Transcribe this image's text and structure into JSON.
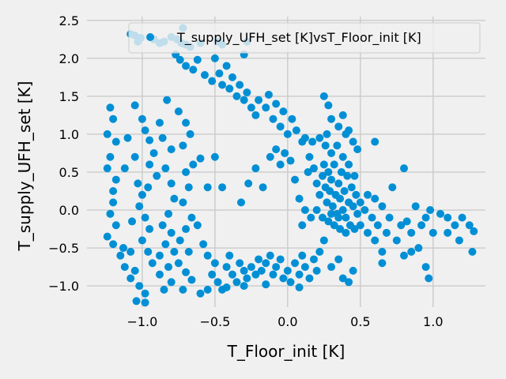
{
  "chart_data": {
    "type": "scatter",
    "xlabel": "T_Floor_init [K]",
    "ylabel": "T_supply_UFH_set [K]",
    "xlim": [
      -1.38,
      1.36
    ],
    "ylim": [
      -1.28,
      2.55
    ],
    "x_ticks": [
      -1.0,
      -0.5,
      0.0,
      0.5,
      1.0
    ],
    "x_tick_labels": [
      "−1.0",
      "−0.5",
      "0.0",
      "0.5",
      "1.0"
    ],
    "y_ticks": [
      -1.0,
      -0.5,
      0.0,
      0.5,
      1.0,
      1.5,
      2.0,
      2.5
    ],
    "y_tick_labels": [
      "−1.0",
      "−0.5",
      "0.0",
      "0.5",
      "1.0",
      "1.5",
      "2.0",
      "2.5"
    ],
    "grid": true,
    "legend_position": "top-right",
    "colors": {
      "marker": "#008fd5",
      "background": "#f0f0f0",
      "grid": "#cbcbcb"
    },
    "series": [
      {
        "name": "T_supply_UFH_set [K]vsT_Floor_init [K]",
        "points": [
          [
            -1.08,
            2.32
          ],
          [
            -1.05,
            2.3
          ],
          [
            -1.03,
            2.22
          ],
          [
            -1.01,
            2.27
          ],
          [
            -0.92,
            2.25
          ],
          [
            -0.88,
            2.2
          ],
          [
            -0.85,
            2.22
          ],
          [
            -0.8,
            2.28
          ],
          [
            -0.76,
            2.25
          ],
          [
            -0.73,
            2.2
          ],
          [
            -0.7,
            2.18
          ],
          [
            -0.67,
            2.15
          ],
          [
            -0.72,
            2.4
          ],
          [
            -0.6,
            2.2
          ],
          [
            -0.48,
            2.22
          ],
          [
            -0.45,
            2.18
          ],
          [
            -0.3,
            2.05
          ],
          [
            -0.28,
            2.22
          ],
          [
            -0.77,
            2.05
          ],
          [
            -0.74,
            1.98
          ],
          [
            -0.7,
            1.9
          ],
          [
            -0.65,
            1.85
          ],
          [
            -0.62,
            1.98
          ],
          [
            -0.57,
            1.78
          ],
          [
            -0.52,
            1.7
          ],
          [
            -0.5,
            2.0
          ],
          [
            -0.47,
            1.8
          ],
          [
            -0.45,
            1.65
          ],
          [
            -0.42,
            1.9
          ],
          [
            -0.4,
            1.6
          ],
          [
            -0.38,
            1.75
          ],
          [
            -0.35,
            1.5
          ],
          [
            -0.33,
            1.65
          ],
          [
            -0.3,
            1.45
          ],
          [
            -0.28,
            1.55
          ],
          [
            -0.25,
            1.35
          ],
          [
            -0.22,
            1.25
          ],
          [
            -0.2,
            1.45
          ],
          [
            -0.15,
            1.35
          ],
          [
            -0.13,
            1.52
          ],
          [
            -0.1,
            1.2
          ],
          [
            -0.08,
            1.4
          ],
          [
            -0.05,
            1.1
          ],
          [
            -0.03,
            1.3
          ],
          [
            0.0,
            1.0
          ],
          [
            0.03,
            1.2
          ],
          [
            0.06,
            1.05
          ],
          [
            0.1,
            0.9
          ],
          [
            0.12,
            0.95
          ],
          [
            0.17,
            0.9
          ],
          [
            0.22,
            0.95
          ],
          [
            0.27,
            1.0
          ],
          [
            0.25,
            1.5
          ],
          [
            0.28,
            1.38
          ],
          [
            0.3,
            1.2
          ],
          [
            0.35,
            1.1
          ],
          [
            0.38,
            1.25
          ],
          [
            0.4,
            1.0
          ],
          [
            0.42,
            1.05
          ],
          [
            0.45,
            0.9
          ],
          [
            0.48,
            0.8
          ],
          [
            -1.22,
            1.35
          ],
          [
            -1.2,
            1.2
          ],
          [
            -1.24,
            1.0
          ],
          [
            -1.18,
            0.9
          ],
          [
            -1.22,
            0.7
          ],
          [
            -1.24,
            0.55
          ],
          [
            -1.18,
            0.4
          ],
          [
            -1.2,
            0.25
          ],
          [
            -1.2,
            0.1
          ],
          [
            -1.22,
            -0.05
          ],
          [
            -1.18,
            -0.2
          ],
          [
            -1.24,
            -0.35
          ],
          [
            -1.2,
            -0.45
          ],
          [
            -1.15,
            -0.6
          ],
          [
            -1.12,
            -0.75
          ],
          [
            -1.08,
            -0.9
          ],
          [
            -1.13,
            -0.5
          ],
          [
            -1.1,
            0.95
          ],
          [
            -1.12,
            0.55
          ],
          [
            -1.05,
            1.38
          ],
          [
            -1.0,
            1.2
          ],
          [
            -0.98,
            1.05
          ],
          [
            -0.95,
            0.92
          ],
          [
            -0.92,
            0.75
          ],
          [
            -0.95,
            0.6
          ],
          [
            -0.9,
            0.45
          ],
          [
            -0.96,
            0.3
          ],
          [
            -1.0,
            0.2
          ],
          [
            -1.02,
            0.05
          ],
          [
            -0.98,
            -0.1
          ],
          [
            -0.95,
            -0.25
          ],
          [
            -1.0,
            -0.4
          ],
          [
            -0.96,
            -0.55
          ],
          [
            -0.93,
            -0.7
          ],
          [
            -1.05,
            -0.8
          ],
          [
            -1.02,
            -1.0
          ],
          [
            -0.98,
            -1.1
          ],
          [
            -1.04,
            -1.2
          ],
          [
            -0.98,
            -1.22
          ],
          [
            -1.05,
            0.7
          ],
          [
            -1.03,
            0.35
          ],
          [
            -1.07,
            -0.15
          ],
          [
            -1.08,
            -0.55
          ],
          [
            -0.88,
            1.15
          ],
          [
            -0.83,
            1.45
          ],
          [
            -0.86,
            0.95
          ],
          [
            -0.8,
            0.8
          ],
          [
            -0.84,
            0.55
          ],
          [
            -0.8,
            0.35
          ],
          [
            -0.78,
            0.15
          ],
          [
            -0.82,
            -0.05
          ],
          [
            -0.86,
            -0.2
          ],
          [
            -0.8,
            -0.3
          ],
          [
            -0.84,
            -0.45
          ],
          [
            -0.88,
            -0.6
          ],
          [
            -0.82,
            -0.75
          ],
          [
            -0.88,
            -0.85
          ],
          [
            -0.8,
            -0.95
          ],
          [
            -0.85,
            -1.05
          ],
          [
            -0.78,
            -0.55
          ],
          [
            -0.75,
            1.3
          ],
          [
            -0.7,
            1.15
          ],
          [
            -0.67,
            1.0
          ],
          [
            -0.72,
            0.85
          ],
          [
            -0.65,
            0.6
          ],
          [
            -0.7,
            0.5
          ],
          [
            -0.68,
            0.3
          ],
          [
            -0.72,
            0.1
          ],
          [
            -0.66,
            -0.1
          ],
          [
            -0.7,
            -0.25
          ],
          [
            -0.74,
            -0.4
          ],
          [
            -0.68,
            -0.55
          ],
          [
            -0.75,
            -0.7
          ],
          [
            -0.7,
            -0.82
          ],
          [
            -0.66,
            -0.92
          ],
          [
            -0.72,
            -1.05
          ],
          [
            -0.6,
            -1.1
          ],
          [
            -0.55,
            -1.05
          ],
          [
            -0.6,
            0.68
          ],
          [
            -0.55,
            0.3
          ],
          [
            -0.62,
            -0.2
          ],
          [
            -0.58,
            -0.45
          ],
          [
            -0.55,
            -0.6
          ],
          [
            -0.5,
            -0.7
          ],
          [
            -0.52,
            -0.85
          ],
          [
            -0.48,
            -0.95
          ],
          [
            -0.45,
            -1.05
          ],
          [
            -0.42,
            -0.75
          ],
          [
            -0.4,
            -0.6
          ],
          [
            -0.38,
            -0.85
          ],
          [
            -0.35,
            -0.95
          ],
          [
            -0.33,
            -0.7
          ],
          [
            -0.3,
            -0.8
          ],
          [
            -0.28,
            -0.9
          ],
          [
            -0.25,
            -0.75
          ],
          [
            -0.22,
            -0.85
          ],
          [
            -0.2,
            -0.65
          ],
          [
            -0.18,
            -0.8
          ],
          [
            -0.15,
            -0.7
          ],
          [
            -0.12,
            -0.6
          ],
          [
            -0.1,
            -0.85
          ],
          [
            -0.08,
            -0.75
          ],
          [
            -0.05,
            -0.65
          ],
          [
            -0.03,
            -0.9
          ],
          [
            0.0,
            -0.8
          ],
          [
            0.02,
            -0.95
          ],
          [
            0.05,
            -0.7
          ],
          [
            0.08,
            -0.85
          ],
          [
            0.1,
            -0.6
          ],
          [
            0.12,
            -0.75
          ],
          [
            0.15,
            -0.9
          ],
          [
            0.18,
            -0.65
          ],
          [
            0.2,
            -0.8
          ],
          [
            0.22,
            -0.55
          ],
          [
            0.25,
            -0.4
          ],
          [
            0.3,
            -0.75
          ],
          [
            0.35,
            -0.65
          ],
          [
            0.38,
            -0.9
          ],
          [
            0.42,
            -0.95
          ],
          [
            0.45,
            -0.8
          ],
          [
            -0.3,
            -1.0
          ],
          [
            -0.42,
            -1.02
          ],
          [
            -0.15,
            -0.98
          ],
          [
            0.08,
            -1.02
          ],
          [
            -0.45,
            0.3
          ],
          [
            -0.5,
            0.7
          ],
          [
            -0.32,
            0.1
          ],
          [
            -0.27,
            0.35
          ],
          [
            -0.22,
            0.55
          ],
          [
            -0.17,
            0.3
          ],
          [
            -0.12,
            0.7
          ],
          [
            -0.08,
            0.8
          ],
          [
            -0.05,
            0.6
          ],
          [
            -0.02,
            0.75
          ],
          [
            0.02,
            0.65
          ],
          [
            0.05,
            0.4
          ],
          [
            0.08,
            0.15
          ],
          [
            0.12,
            0.0
          ],
          [
            0.14,
            0.5
          ],
          [
            0.16,
            -0.1
          ],
          [
            0.1,
            -0.2
          ],
          [
            0.15,
            0.7
          ],
          [
            0.18,
            0.55
          ],
          [
            0.2,
            0.35
          ],
          [
            0.22,
            0.2
          ],
          [
            0.24,
            0.45
          ],
          [
            0.25,
            0.6
          ],
          [
            0.26,
            0.3
          ],
          [
            0.27,
            0.1
          ],
          [
            0.28,
            0.5
          ],
          [
            0.29,
            0.25
          ],
          [
            0.3,
            0.4
          ],
          [
            0.31,
            0.05
          ],
          [
            0.32,
            0.6
          ],
          [
            0.33,
            0.2
          ],
          [
            0.34,
            -0.05
          ],
          [
            0.35,
            0.35
          ],
          [
            0.36,
            0.15
          ],
          [
            0.37,
            0.5
          ],
          [
            0.38,
            0.0
          ],
          [
            0.39,
            0.25
          ],
          [
            0.4,
            -0.1
          ],
          [
            0.41,
            0.45
          ],
          [
            0.42,
            0.1
          ],
          [
            0.43,
            -0.2
          ],
          [
            0.44,
            0.3
          ],
          [
            0.45,
            0.05
          ],
          [
            0.46,
            -0.25
          ],
          [
            0.47,
            0.2
          ],
          [
            0.48,
            -0.05
          ],
          [
            0.5,
            0.1
          ],
          [
            0.2,
            0.0
          ],
          [
            0.24,
            -0.1
          ],
          [
            0.28,
            -0.15
          ],
          [
            0.32,
            -0.2
          ],
          [
            0.36,
            -0.25
          ],
          [
            0.4,
            -0.3
          ],
          [
            0.3,
            0.75
          ],
          [
            0.34,
            0.85
          ],
          [
            0.38,
            0.7
          ],
          [
            0.26,
            0.85
          ],
          [
            0.42,
            0.6
          ],
          [
            0.46,
            0.45
          ],
          [
            0.35,
            -0.1
          ],
          [
            0.3,
            -0.05
          ],
          [
            0.5,
            -0.2
          ],
          [
            0.53,
            0.0
          ],
          [
            0.55,
            -0.3
          ],
          [
            0.58,
            -0.1
          ],
          [
            0.6,
            -0.4
          ],
          [
            0.62,
            -0.2
          ],
          [
            0.65,
            -0.55
          ],
          [
            0.68,
            -0.3
          ],
          [
            0.7,
            -0.1
          ],
          [
            0.72,
            0.3
          ],
          [
            0.75,
            -0.4
          ],
          [
            0.78,
            -0.2
          ],
          [
            0.8,
            -0.6
          ],
          [
            0.82,
            -0.15
          ],
          [
            0.85,
            -0.3
          ],
          [
            0.88,
            0.05
          ],
          [
            0.9,
            -0.5
          ],
          [
            0.92,
            -0.2
          ],
          [
            0.95,
            -0.1
          ],
          [
            0.98,
            0.0
          ],
          [
            1.0,
            -0.3
          ],
          [
            0.55,
            0.2
          ],
          [
            0.6,
            0.15
          ],
          [
            0.65,
            0.05
          ],
          [
            0.6,
            0.9
          ],
          [
            0.8,
            0.55
          ],
          [
            0.85,
            -0.55
          ],
          [
            0.95,
            -0.75
          ],
          [
            0.97,
            -0.9
          ],
          [
            0.65,
            -0.7
          ],
          [
            1.05,
            -0.05
          ],
          [
            1.1,
            -0.1
          ],
          [
            1.15,
            -0.2
          ],
          [
            1.2,
            -0.1
          ],
          [
            1.25,
            -0.2
          ],
          [
            1.28,
            -0.28
          ],
          [
            1.27,
            -0.55
          ],
          [
            1.18,
            -0.4
          ],
          [
            1.1,
            -0.3
          ]
        ]
      }
    ]
  }
}
